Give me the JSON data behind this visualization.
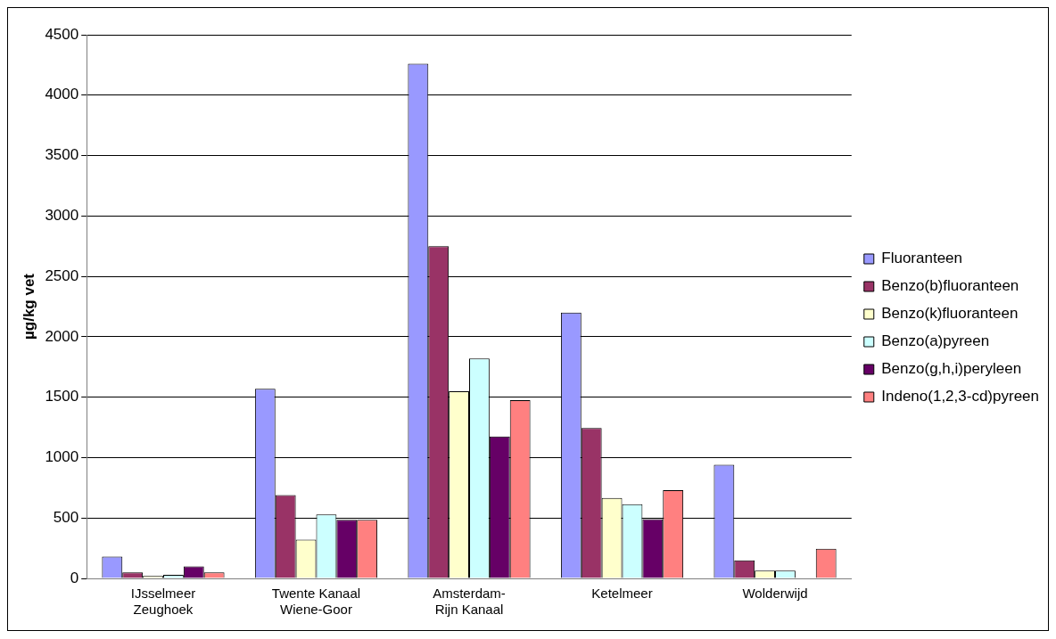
{
  "chart_data": {
    "type": "bar",
    "ylabel": "µg/kg vet",
    "categories": [
      "IJsselmeer Zeughoek",
      "Twente Kanaal Wiene-Goor",
      "Amsterdam-Rijn Kanaal",
      "Ketelmeer",
      "Wolderwijd"
    ],
    "series": [
      {
        "name": "Fluoranteen",
        "color": "#9999ff",
        "values": [
          180,
          1570,
          4260,
          2200,
          940
        ]
      },
      {
        "name": "Benzo(b)fluoranteen",
        "color": "#993366",
        "values": [
          50,
          690,
          2750,
          1245,
          150
        ]
      },
      {
        "name": "Benzo(k)fluoranteen",
        "color": "#ffffcc",
        "values": [
          20,
          320,
          1550,
          665,
          65
        ]
      },
      {
        "name": "Benzo(a)pyreen",
        "color": "#ccffff",
        "values": [
          30,
          530,
          1820,
          615,
          65
        ]
      },
      {
        "name": "Benzo(g,h,i)peryleen",
        "color": "#660066",
        "values": [
          100,
          485,
          1175,
          490,
          null
        ]
      },
      {
        "name": "Indeno(1,2,3-cd)pyreen",
        "color": "#ff8080",
        "values": [
          50,
          485,
          1475,
          730,
          245
        ]
      }
    ],
    "ylim": [
      0,
      4500
    ],
    "yticks": [
      0,
      500,
      1000,
      1500,
      2000,
      2500,
      3000,
      3500,
      4000,
      4500
    ],
    "grid": "y",
    "legend": "right"
  }
}
